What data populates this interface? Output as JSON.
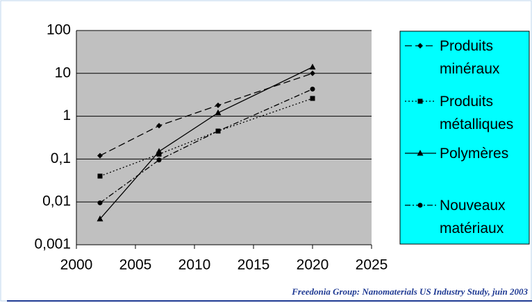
{
  "chart_data": {
    "type": "line",
    "x": [
      2002,
      2007,
      2012,
      2020
    ],
    "series": [
      {
        "name": "Produits minéraux",
        "color": "#000000",
        "dash": "10 5",
        "marker": "diamond",
        "values": [
          0.12,
          0.6,
          1.8,
          10
        ]
      },
      {
        "name": "Produits métalliques",
        "color": "#000000",
        "dash": "2 3",
        "marker": "square",
        "values": [
          0.04,
          0.13,
          0.45,
          2.6
        ]
      },
      {
        "name": "Polymères",
        "color": "#000000",
        "dash": "none",
        "marker": "triangle",
        "values": [
          0.004,
          0.15,
          1.2,
          14
        ]
      },
      {
        "name": "Nouveaux matériaux",
        "color": "#000000",
        "dash": "8 3 2 3",
        "marker": "circle",
        "values": [
          0.0095,
          0.095,
          0.45,
          4.3
        ]
      }
    ],
    "xlim": [
      2000,
      2025
    ],
    "xticks": [
      2000,
      2005,
      2010,
      2015,
      2020,
      2025
    ],
    "ylim": [
      0.001,
      100
    ],
    "log_y": true,
    "yticks": [
      {
        "value": 0.001,
        "label": "0,001"
      },
      {
        "value": 0.01,
        "label": "0,01"
      },
      {
        "value": 0.1,
        "label": "0,1"
      },
      1,
      10,
      100
    ],
    "grid": true,
    "legend": "right",
    "source": "Freedonia Group: Nanomaterials US Industry Study, juin 2003"
  }
}
